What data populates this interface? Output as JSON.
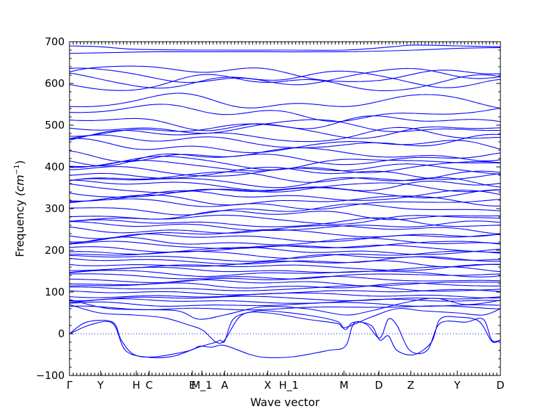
{
  "chart_data": {
    "type": "line",
    "title": "",
    "xlabel": "Wave vector",
    "ylabel": "Frequency (cm⁻¹)",
    "ylabel_prefix": "Frequency ",
    "ylabel_unit": "(cm",
    "ylabel_exp": "−1",
    "ylabel_close": ")",
    "ylim": [
      -100,
      700
    ],
    "yticks": [
      -100,
      0,
      100,
      200,
      300,
      400,
      500,
      600,
      700
    ],
    "xlim": [
      0,
      1
    ],
    "xticks": [
      {
        "label": "Γ",
        "x": 0.0
      },
      {
        "label": "Y",
        "x": 0.072
      },
      {
        "label": "H",
        "x": 0.155
      },
      {
        "label": "C",
        "x": 0.185
      },
      {
        "label": "E",
        "x": 0.285
      },
      {
        "label": "M_1",
        "x": 0.307
      },
      {
        "label": "A",
        "x": 0.36
      },
      {
        "label": "X",
        "x": 0.46
      },
      {
        "label": "H_1",
        "x": 0.509
      },
      {
        "label": "M",
        "x": 0.637
      },
      {
        "label": "D",
        "x": 0.718
      },
      {
        "label": "Z",
        "x": 0.792
      },
      {
        "label": "Y",
        "x": 0.9
      },
      {
        "label": "D",
        "x": 1.0
      }
    ],
    "line_color": "#0000ff",
    "zero_line": {
      "y": 0,
      "style": "dotted",
      "color": "#0000ff"
    },
    "band_levels": [
      625,
      615,
      610,
      602,
      555,
      530,
      505,
      495,
      488,
      475,
      460,
      450,
      430,
      420,
      410,
      400,
      392,
      385,
      375,
      365,
      355,
      348,
      340,
      330,
      320,
      312,
      298,
      285,
      275,
      265,
      258,
      250,
      240,
      230,
      220,
      212,
      205,
      198,
      190,
      182,
      175,
      168,
      160,
      152,
      145,
      138,
      130,
      122,
      115,
      108,
      100,
      92,
      85,
      78,
      70,
      62
    ],
    "top_bands": [
      {
        "name": "",
        "points": [
          [
            0,
            690
          ],
          [
            0.07,
            688
          ],
          [
            0.15,
            682
          ],
          [
            0.3,
            680
          ],
          [
            0.5,
            680
          ],
          [
            0.64,
            680
          ],
          [
            0.75,
            688
          ],
          [
            0.8,
            692
          ],
          [
            0.9,
            690
          ],
          [
            1,
            688
          ]
        ]
      },
      {
        "name": "",
        "points": [
          [
            0,
            672
          ],
          [
            0.1,
            674
          ],
          [
            0.2,
            676
          ],
          [
            0.4,
            676
          ],
          [
            0.64,
            676
          ],
          [
            0.8,
            680
          ],
          [
            0.9,
            684
          ],
          [
            1,
            686
          ]
        ]
      }
    ],
    "low_bands": [
      {
        "name": "",
        "points": [
          [
            0,
            0
          ],
          [
            0.04,
            28
          ],
          [
            0.1,
            28
          ],
          [
            0.12,
            -15
          ],
          [
            0.15,
            -50
          ],
          [
            0.2,
            -55
          ],
          [
            0.28,
            -40
          ],
          [
            0.3,
            -30
          ],
          [
            0.33,
            -32
          ],
          [
            0.36,
            -28
          ],
          [
            0.42,
            -50
          ],
          [
            0.46,
            -57
          ],
          [
            0.52,
            -55
          ],
          [
            0.6,
            -40
          ],
          [
            0.64,
            -30
          ],
          [
            0.66,
            25
          ],
          [
            0.69,
            22
          ],
          [
            0.72,
            -10
          ],
          [
            0.74,
            35
          ],
          [
            0.76,
            20
          ],
          [
            0.79,
            -40
          ],
          [
            0.83,
            -40
          ],
          [
            0.86,
            25
          ],
          [
            0.92,
            28
          ],
          [
            0.96,
            35
          ],
          [
            0.98,
            -15
          ],
          [
            1,
            -15
          ]
        ]
      },
      {
        "name": "",
        "points": [
          [
            0,
            0
          ],
          [
            0.05,
            22
          ],
          [
            0.1,
            25
          ],
          [
            0.13,
            -40
          ],
          [
            0.18,
            -56
          ],
          [
            0.24,
            -54
          ],
          [
            0.3,
            -32
          ],
          [
            0.34,
            -20
          ],
          [
            0.35,
            -15
          ],
          [
            0.36,
            -18
          ],
          [
            0.38,
            35
          ],
          [
            0.42,
            52
          ],
          [
            0.46,
            55
          ],
          [
            0.55,
            45
          ],
          [
            0.62,
            30
          ],
          [
            0.64,
            10
          ],
          [
            0.66,
            28
          ],
          [
            0.7,
            20
          ],
          [
            0.72,
            -15
          ],
          [
            0.74,
            -5
          ],
          [
            0.76,
            -40
          ],
          [
            0.8,
            -50
          ],
          [
            0.84,
            -20
          ],
          [
            0.86,
            35
          ],
          [
            0.9,
            40
          ],
          [
            0.95,
            30
          ],
          [
            0.98,
            -18
          ],
          [
            1,
            -15
          ]
        ]
      },
      {
        "name": "",
        "points": [
          [
            0,
            70
          ],
          [
            0.07,
            50
          ],
          [
            0.15,
            45
          ],
          [
            0.22,
            38
          ],
          [
            0.28,
            20
          ],
          [
            0.31,
            8
          ],
          [
            0.34,
            -20
          ],
          [
            0.36,
            -15
          ],
          [
            0.4,
            45
          ],
          [
            0.46,
            50
          ],
          [
            0.55,
            35
          ],
          [
            0.62,
            25
          ],
          [
            0.64,
            15
          ],
          [
            0.7,
            40
          ],
          [
            0.76,
            60
          ],
          [
            0.82,
            55
          ],
          [
            0.9,
            50
          ],
          [
            0.96,
            45
          ],
          [
            1,
            60
          ]
        ]
      },
      {
        "name": "",
        "points": [
          [
            0,
            82
          ],
          [
            0.08,
            62
          ],
          [
            0.15,
            58
          ],
          [
            0.25,
            55
          ],
          [
            0.3,
            35
          ],
          [
            0.36,
            45
          ],
          [
            0.45,
            65
          ],
          [
            0.55,
            60
          ],
          [
            0.64,
            45
          ],
          [
            0.7,
            55
          ],
          [
            0.78,
            75
          ],
          [
            0.85,
            85
          ],
          [
            0.92,
            70
          ],
          [
            1,
            80
          ]
        ]
      }
    ]
  }
}
